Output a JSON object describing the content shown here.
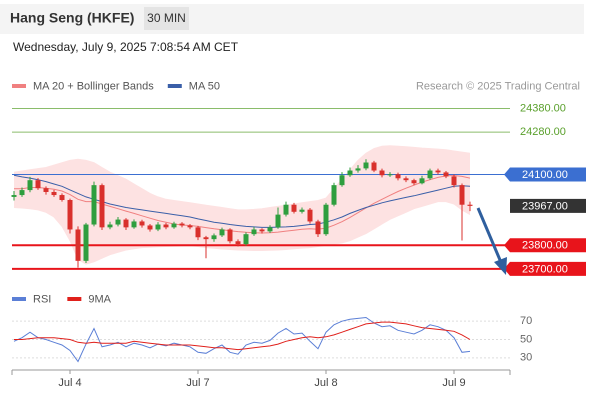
{
  "header": {
    "title": "Hang Seng (HKFE)",
    "timeframe": "30 MIN",
    "datetime": "Wednesday, July 9, 2025 7:08:54 AM CET"
  },
  "chart_data": [
    {
      "type": "candlestick",
      "source": "Research © 2025 Trading Central",
      "up_color": "#2e9e3e",
      "down_color": "#d9302c",
      "ylim": [
        23640,
        24450
      ],
      "ohlc": [
        [
          24005,
          24030,
          23990,
          24013
        ],
        [
          24013,
          24045,
          24005,
          24034
        ],
        [
          24034,
          24090,
          24025,
          24076
        ],
        [
          24076,
          24085,
          24035,
          24042
        ],
        [
          24042,
          24050,
          24015,
          24026
        ],
        [
          24026,
          24035,
          24005,
          24013
        ],
        [
          24013,
          24020,
          23985,
          23992
        ],
        [
          23992,
          23998,
          23850,
          23867
        ],
        [
          23867,
          23880,
          23705,
          23734
        ],
        [
          23734,
          23895,
          23725,
          23888
        ],
        [
          23888,
          24070,
          23880,
          24055
        ],
        [
          24055,
          24062,
          23865,
          23876
        ],
        [
          23876,
          23900,
          23868,
          23888
        ],
        [
          23888,
          23920,
          23880,
          23909
        ],
        [
          23909,
          23915,
          23865,
          23876
        ],
        [
          23876,
          23910,
          23870,
          23901
        ],
        [
          23901,
          23908,
          23875,
          23884
        ],
        [
          23884,
          23890,
          23858,
          23867
        ],
        [
          23867,
          23898,
          23860,
          23888
        ],
        [
          23888,
          23895,
          23868,
          23876
        ],
        [
          23876,
          23900,
          23870,
          23892
        ],
        [
          23892,
          23898,
          23876,
          23884
        ],
        [
          23884,
          23890,
          23868,
          23876
        ],
        [
          23876,
          23882,
          23822,
          23834
        ],
        [
          23834,
          23840,
          23745,
          23826
        ],
        [
          23826,
          23850,
          23815,
          23842
        ],
        [
          23842,
          23875,
          23835,
          23867
        ],
        [
          23867,
          23872,
          23808,
          23817
        ],
        [
          23817,
          23825,
          23795,
          23805
        ],
        [
          23805,
          23855,
          23798,
          23847
        ],
        [
          23847,
          23878,
          23840,
          23867
        ],
        [
          23867,
          23872,
          23850,
          23859
        ],
        [
          23859,
          23885,
          23852,
          23876
        ],
        [
          23876,
          23960,
          23870,
          23930
        ],
        [
          23930,
          23985,
          23922,
          23972
        ],
        [
          23972,
          23980,
          23935,
          23942
        ],
        [
          23942,
          23960,
          23935,
          23951
        ],
        [
          23951,
          23958,
          23892,
          23901
        ],
        [
          23901,
          23908,
          23835,
          23847
        ],
        [
          23847,
          23980,
          23840,
          23972
        ],
        [
          23972,
          24065,
          23965,
          24055
        ],
        [
          24055,
          24110,
          24048,
          24097
        ],
        [
          24097,
          24130,
          24090,
          24117
        ],
        [
          24117,
          24140,
          24108,
          24126
        ],
        [
          24126,
          24165,
          24118,
          24151
        ],
        [
          24151,
          24158,
          24110,
          24117
        ],
        [
          24117,
          24125,
          24088,
          24097
        ],
        [
          24097,
          24110,
          24090,
          24101
        ],
        [
          24101,
          24108,
          24075,
          24084
        ],
        [
          24084,
          24092,
          24068,
          24076
        ],
        [
          24076,
          24082,
          24055,
          24063
        ],
        [
          24063,
          24095,
          24058,
          24084
        ],
        [
          24084,
          24125,
          24078,
          24117
        ],
        [
          24117,
          24125,
          24100,
          24109
        ],
        [
          24109,
          24115,
          24085,
          24092
        ],
        [
          24092,
          24100,
          24045,
          24055
        ],
        [
          24055,
          24062,
          23820,
          23972
        ],
        [
          23972,
          23985,
          23945,
          23967
        ]
      ],
      "series": [
        {
          "name": "MA 20 + Bollinger Bands",
          "color": "#f08080",
          "band_color": "#fde2e2",
          "values": [
            24040,
            24040,
            24045,
            24045,
            24042,
            24038,
            24030,
            24015,
            23995,
            23985,
            23985,
            23975,
            23965,
            23955,
            23945,
            23935,
            23925,
            23915,
            23905,
            23898,
            23890,
            23886,
            23884,
            23880,
            23875,
            23870,
            23866,
            23862,
            23858,
            23855,
            23853,
            23852,
            23853,
            23856,
            23860,
            23864,
            23868,
            23870,
            23868,
            23873,
            23885,
            23900,
            23918,
            23938,
            23958,
            23978,
            23995,
            24012,
            24028,
            24042,
            24055,
            24068,
            24078,
            24088,
            24094,
            24096,
            24092,
            24085
          ],
          "upper": [
            24110,
            24115,
            24120,
            24125,
            24130,
            24140,
            24150,
            24160,
            24165,
            24160,
            24150,
            24130,
            24110,
            24095,
            24080,
            24060,
            24040,
            24020,
            24005,
            23995,
            23990,
            23985,
            23980,
            23975,
            23970,
            23965,
            23960,
            23955,
            23950,
            23950,
            23952,
            23955,
            23960,
            23965,
            23970,
            23975,
            23980,
            23985,
            23990,
            24000,
            24040,
            24080,
            24120,
            24160,
            24190,
            24210,
            24220,
            24222,
            24220,
            24218,
            24215,
            24212,
            24210,
            24208,
            24205,
            24200,
            24195,
            24190
          ],
          "lower": [
            23960,
            23958,
            23955,
            23950,
            23940,
            23920,
            23880,
            23820,
            23740,
            23720,
            23730,
            23745,
            23760,
            23770,
            23780,
            23785,
            23790,
            23792,
            23794,
            23795,
            23796,
            23797,
            23798,
            23795,
            23790,
            23787,
            23784,
            23782,
            23780,
            23779,
            23778,
            23778,
            23779,
            23780,
            23782,
            23785,
            23788,
            23790,
            23795,
            23800,
            23805,
            23810,
            23820,
            23835,
            23850,
            23870,
            23890,
            23910,
            23925,
            23940,
            23955,
            23965,
            23975,
            23985,
            23985,
            23975,
            23950,
            23930
          ]
        },
        {
          "name": "MA 50",
          "color": "#3a5fa8",
          "values": [
            24097,
            24090,
            24085,
            24078,
            24070,
            24060,
            24050,
            24035,
            24020,
            24005,
            23995,
            23985,
            23975,
            23968,
            23960,
            23955,
            23950,
            23945,
            23940,
            23935,
            23930,
            23925,
            23920,
            23912,
            23905,
            23898,
            23893,
            23888,
            23884,
            23880,
            23878,
            23876,
            23876,
            23877,
            23878,
            23880,
            23884,
            23888,
            23890,
            23898,
            23908,
            23920,
            23935,
            23948,
            23960,
            23970,
            23980,
            23988,
            23996,
            24003,
            24010,
            24018,
            24026,
            24034,
            24042,
            24050,
            24052,
            24050
          ]
        }
      ],
      "levels": [
        {
          "value": 24380,
          "label": "24380.00",
          "color": "#5aa02c",
          "style": "target"
        },
        {
          "value": 24280,
          "label": "24280.00",
          "color": "#5aa02c",
          "style": "target"
        },
        {
          "value": 24100,
          "label": "24100.00",
          "color": "#3b6fd1",
          "style": "pivot"
        },
        {
          "value": 23967,
          "label": "23967.00",
          "color": "#333333",
          "style": "last"
        },
        {
          "value": 23800,
          "label": "23800.00",
          "color": "#e8141b",
          "style": "support"
        },
        {
          "value": 23700,
          "label": "23700.00",
          "color": "#e8141b",
          "style": "support"
        }
      ]
    },
    {
      "type": "line",
      "categories": [
        null,
        null,
        null,
        null,
        null,
        null,
        null,
        "Jul 4",
        null,
        null,
        null,
        null,
        null,
        null,
        null,
        null,
        null,
        null,
        null,
        null,
        null,
        null,
        null,
        "Jul 7",
        null,
        null,
        null,
        null,
        null,
        null,
        null,
        null,
        null,
        null,
        null,
        null,
        null,
        null,
        null,
        "Jul 8",
        null,
        null,
        null,
        null,
        null,
        null,
        null,
        null,
        null,
        null,
        null,
        null,
        null,
        null,
        null,
        "Jul 9",
        null,
        null
      ],
      "ylim": [
        20,
        80
      ],
      "yticks": [
        30,
        50,
        70
      ],
      "grid": true,
      "series": [
        {
          "name": "RSI",
          "color": "#5b7fd6",
          "values": [
            48,
            52,
            58,
            52,
            50,
            47,
            44,
            38,
            26,
            45,
            62,
            42,
            44,
            47,
            42,
            46,
            44,
            41,
            45,
            43,
            46,
            44,
            42,
            36,
            35,
            40,
            44,
            36,
            34,
            44,
            47,
            46,
            49,
            57,
            62,
            56,
            57,
            48,
            40,
            58,
            66,
            70,
            72,
            73,
            74,
            68,
            64,
            65,
            60,
            58,
            56,
            60,
            66,
            64,
            60,
            52,
            36,
            37
          ]
        },
        {
          "name": "9MA",
          "color": "#e0201b",
          "values": [
            50,
            50,
            51,
            52,
            52,
            52,
            51,
            50,
            47,
            46,
            47,
            46,
            46,
            46,
            46,
            48,
            47,
            46,
            45,
            44,
            44,
            44,
            44,
            43,
            42,
            41,
            41,
            40,
            39,
            40,
            41,
            42,
            43,
            45,
            48,
            50,
            52,
            53,
            52,
            53,
            55,
            58,
            61,
            64,
            67,
            68,
            69,
            69,
            68,
            67,
            65,
            63,
            62,
            61,
            60,
            59,
            55,
            50
          ]
        }
      ]
    }
  ]
}
